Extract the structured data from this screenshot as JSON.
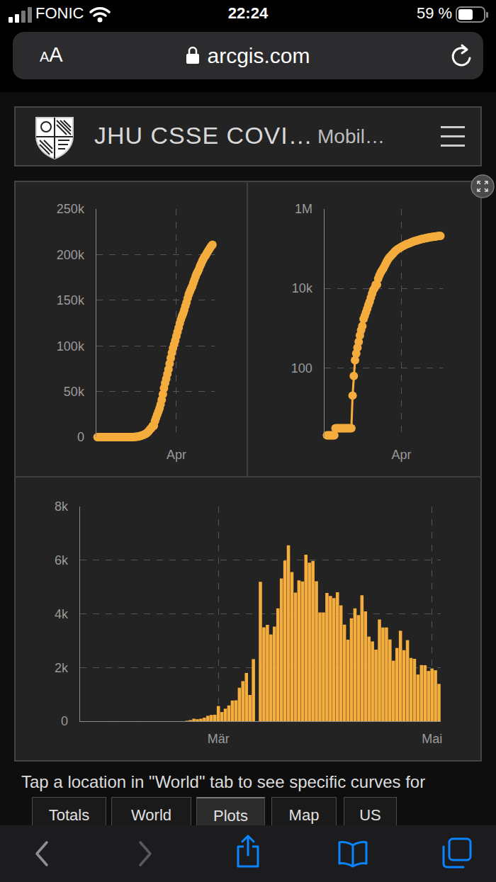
{
  "status_bar": {
    "carrier": "FONIC",
    "time": "22:24",
    "battery": "59 %"
  },
  "browser": {
    "text_size_button": "AA",
    "url": "arcgis.com"
  },
  "header": {
    "title": "JHU CSSE COVI…",
    "subtitle": "Mobil…"
  },
  "chart_data": [
    {
      "type": "line",
      "marker": "circle",
      "color": "#f4ad3d",
      "grid": true,
      "categories": [
        null,
        null,
        null,
        null,
        null,
        null,
        null,
        null,
        null,
        null,
        null,
        null,
        null,
        null,
        null,
        null,
        null,
        null,
        null,
        null,
        null,
        null,
        null,
        null,
        null,
        null,
        null,
        null,
        null,
        null,
        null,
        null,
        null,
        null,
        null,
        null,
        null,
        null,
        null,
        null,
        null,
        null,
        null,
        null,
        null,
        null,
        null,
        null,
        null,
        null,
        null,
        null,
        null,
        null,
        null,
        null,
        null,
        null,
        null,
        null,
        null,
        null,
        null,
        null,
        null,
        null,
        null,
        null,
        null,
        null,
        "Apr",
        null,
        null,
        null,
        null,
        null,
        null,
        null,
        null,
        null,
        null,
        null,
        null,
        null,
        null,
        null,
        null,
        null,
        null,
        null,
        null,
        null,
        null,
        null,
        null,
        null,
        null,
        null,
        null,
        null,
        null,
        null,
        null
      ],
      "values": [
        0,
        0,
        0,
        0,
        0,
        0,
        0,
        0,
        0,
        2,
        2,
        2,
        2,
        2,
        2,
        3,
        3,
        3,
        3,
        3,
        3,
        3,
        3,
        3,
        3,
        3,
        3,
        3,
        3,
        3,
        20,
        62,
        155,
        229,
        322,
        453,
        655,
        888,
        1128,
        1694,
        2036,
        2502,
        3089,
        3858,
        4636,
        5883,
        7375,
        9172,
        10149,
        12462,
        12462,
        17660,
        21157,
        24747,
        27980,
        31506,
        35713,
        41035,
        47021,
        53578,
        59138,
        63927,
        69176,
        74386,
        80589,
        86498,
        92472,
        97689,
        101739,
        105792,
        110574,
        115242,
        119827,
        124632,
        128948,
        132547,
        135586,
        139422,
        143626,
        147577,
        152271,
        156363,
        159516,
        162488,
        165155,
        168941,
        172434,
        175925,
        178972,
        181228,
        183957,
        187327,
        189973,
        192994,
        195351,
        197675,
        199414,
        201505,
        203591,
        205463,
        207428,
        209328,
        210717
      ],
      "ylim": [
        0,
        250000
      ],
      "yticks": [
        0,
        {
          "value": 50000,
          "label": "50k"
        },
        {
          "value": 100000,
          "label": "100k"
        },
        {
          "value": 150000,
          "label": "150k"
        },
        {
          "value": 200000,
          "label": "200k"
        },
        {
          "value": 250000,
          "label": "250k"
        }
      ]
    },
    {
      "type": "line",
      "marker": "circle",
      "color": "#f4ad3d",
      "grid": true,
      "log": "y",
      "categories": [
        null,
        null,
        null,
        null,
        null,
        null,
        null,
        null,
        null,
        null,
        null,
        null,
        null,
        null,
        null,
        null,
        null,
        null,
        null,
        null,
        null,
        null,
        null,
        null,
        null,
        null,
        null,
        null,
        null,
        null,
        null,
        null,
        null,
        null,
        null,
        null,
        null,
        null,
        null,
        null,
        null,
        null,
        null,
        null,
        null,
        null,
        null,
        null,
        null,
        null,
        null,
        null,
        null,
        null,
        null,
        null,
        null,
        null,
        null,
        null,
        null,
        "Apr",
        null,
        null,
        null,
        null,
        null,
        null,
        null,
        null,
        null,
        null,
        null,
        null,
        null,
        null,
        null,
        null,
        null,
        null,
        null,
        null,
        null,
        null,
        null,
        null,
        null,
        null,
        null,
        null,
        null,
        null,
        null,
        null
      ],
      "values": [
        2,
        2,
        2,
        2,
        2,
        2,
        2,
        3,
        3,
        3,
        3,
        3,
        3,
        3,
        3,
        3,
        3,
        3,
        3,
        3,
        3,
        20,
        62,
        155,
        229,
        322,
        453,
        655,
        888,
        1128,
        1694,
        2036,
        2502,
        3089,
        3858,
        4636,
        5883,
        7375,
        9172,
        10149,
        12462,
        12462,
        17660,
        21157,
        24747,
        27980,
        31506,
        35713,
        41035,
        47021,
        53578,
        59138,
        63927,
        69176,
        74386,
        80589,
        86498,
        92472,
        97689,
        101739,
        105792,
        110574,
        115242,
        119827,
        124632,
        128948,
        132547,
        135586,
        139422,
        143626,
        147577,
        152271,
        156363,
        159516,
        162488,
        165155,
        168941,
        172434,
        175925,
        178972,
        181228,
        183957,
        187327,
        189973,
        192994,
        195351,
        197675,
        199414,
        201505,
        203591,
        205463,
        207428,
        209328,
        210717
      ],
      "ylim": [
        1.8,
        1000000
      ],
      "yticks": [
        100,
        {
          "value": 10000,
          "label": "10k"
        },
        {
          "value": 1000000,
          "label": "1M"
        }
      ]
    },
    {
      "type": "bar",
      "color": "#f5ae3e",
      "grid": true,
      "categories": [
        null,
        null,
        null,
        null,
        null,
        null,
        null,
        null,
        null,
        null,
        null,
        null,
        null,
        null,
        null,
        null,
        null,
        null,
        null,
        null,
        null,
        null,
        null,
        null,
        null,
        null,
        null,
        null,
        null,
        null,
        null,
        null,
        null,
        null,
        null,
        null,
        null,
        null,
        null,
        "Mär",
        null,
        null,
        null,
        null,
        null,
        null,
        null,
        null,
        null,
        null,
        null,
        null,
        null,
        null,
        null,
        null,
        null,
        null,
        null,
        null,
        null,
        null,
        null,
        null,
        null,
        null,
        null,
        null,
        null,
        null,
        null,
        null,
        null,
        null,
        null,
        null,
        null,
        null,
        null,
        null,
        null,
        null,
        null,
        null,
        null,
        null,
        null,
        null,
        null,
        null,
        null,
        null,
        null,
        null,
        null,
        null,
        null,
        null,
        null,
        null,
        "Mai",
        null,
        null
      ],
      "values": [
        0,
        0,
        0,
        0,
        0,
        0,
        0,
        0,
        0,
        2,
        0,
        0,
        0,
        0,
        0,
        0,
        1,
        0,
        0,
        0,
        0,
        0,
        0,
        0,
        0,
        0,
        0,
        0,
        0,
        0,
        17,
        42,
        93,
        74,
        93,
        131,
        202,
        233,
        240,
        566,
        342,
        466,
        587,
        769,
        778,
        1247,
        1492,
        1797,
        977,
        2313,
        0,
        5198,
        3497,
        3590,
        3233,
        3526,
        4207,
        5322,
        5986,
        6557,
        5560,
        4789,
        5249,
        5210,
        6203,
        5909,
        5974,
        5217,
        4050,
        4053,
        4782,
        4668,
        4585,
        4805,
        4316,
        3599,
        3039,
        3836,
        4204,
        3951,
        4694,
        4092,
        3153,
        2972,
        2667,
        3786,
        3493,
        3491,
        3047,
        2256,
        2729,
        3370,
        2646,
        3021,
        2357,
        2324,
        1739,
        2091,
        2086,
        1872,
        1965,
        1900,
        1389
      ],
      "ylim": [
        0,
        8000
      ],
      "yticks": [
        0,
        {
          "value": 2000,
          "label": "2k"
        },
        {
          "value": 4000,
          "label": "4k"
        },
        {
          "value": 6000,
          "label": "6k"
        },
        {
          "value": 8000,
          "label": "8k"
        }
      ]
    }
  ],
  "footer": {
    "hint": "Tap a location in \"World\" tab to see specific curves for",
    "tabs": [
      "Totals",
      "World",
      "Plots",
      "Map",
      "US"
    ],
    "selected_tab": "Plots"
  }
}
